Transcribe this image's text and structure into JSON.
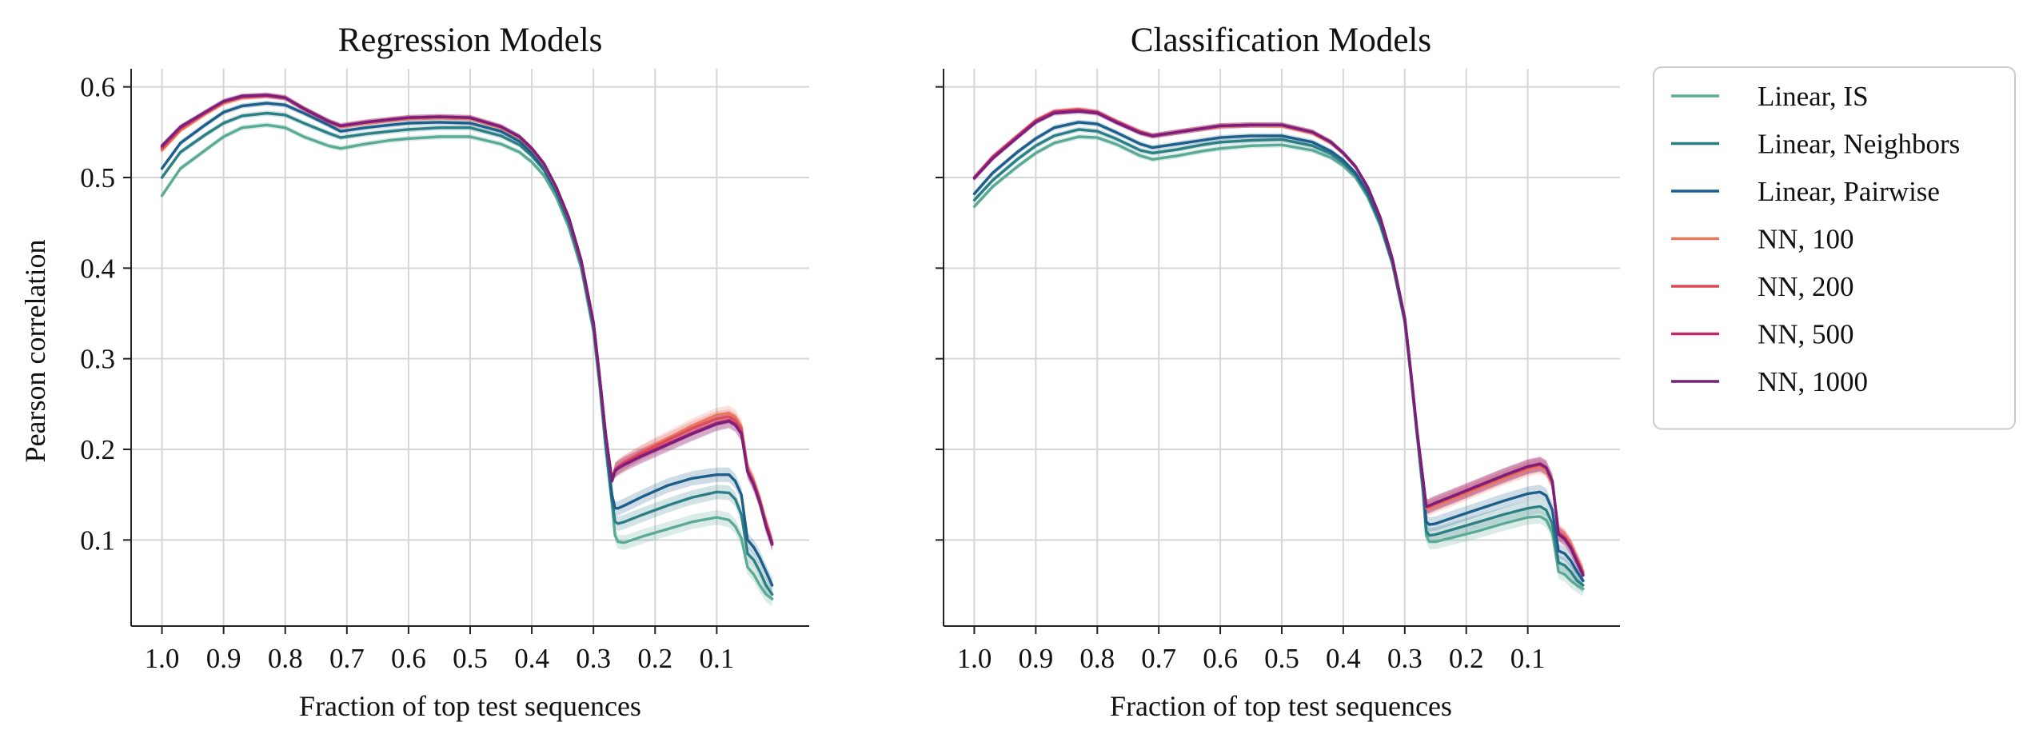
{
  "chart_data": [
    {
      "type": "line",
      "title": "Regression Models",
      "xlabel": "Fraction of top test sequences",
      "ylabel": "Pearson correlation",
      "xlim": [
        1.05,
        -0.05
      ],
      "ylim": [
        0.005,
        0.62
      ],
      "xticks": [
        1.0,
        0.9,
        0.8,
        0.7,
        0.6,
        0.5,
        0.4,
        0.3,
        0.2,
        0.1
      ],
      "xtick_labels": [
        "1.0",
        "0.9",
        "0.8",
        "0.7",
        "0.6",
        "0.5",
        "0.4",
        "0.3",
        "0.2",
        "0.1"
      ],
      "yticks": [
        0.1,
        0.2,
        0.3,
        0.4,
        0.5,
        0.6
      ],
      "ytick_labels": [
        "0.1",
        "0.2",
        "0.3",
        "0.4",
        "0.5",
        "0.6"
      ],
      "grid": true,
      "x": [
        1.0,
        0.97,
        0.93,
        0.9,
        0.87,
        0.83,
        0.8,
        0.77,
        0.73,
        0.71,
        0.67,
        0.63,
        0.6,
        0.55,
        0.5,
        0.45,
        0.42,
        0.4,
        0.38,
        0.36,
        0.34,
        0.32,
        0.3,
        0.29,
        0.28,
        0.27,
        0.265,
        0.26,
        0.25,
        0.22,
        0.18,
        0.14,
        0.1,
        0.08,
        0.07,
        0.06,
        0.05,
        0.04,
        0.03,
        0.02,
        0.01
      ],
      "series": [
        {
          "name": "Linear, IS",
          "color": "#5aaa95",
          "values": [
            0.48,
            0.51,
            0.53,
            0.545,
            0.555,
            0.558,
            0.555,
            0.545,
            0.535,
            0.532,
            0.537,
            0.541,
            0.543,
            0.545,
            0.545,
            0.537,
            0.528,
            0.517,
            0.502,
            0.478,
            0.445,
            0.4,
            0.33,
            0.27,
            0.2,
            0.14,
            0.105,
            0.098,
            0.097,
            0.104,
            0.112,
            0.12,
            0.125,
            0.122,
            0.115,
            0.102,
            0.07,
            0.062,
            0.05,
            0.04,
            0.035
          ]
        },
        {
          "name": "Linear, Neighbors",
          "color": "#2d7f86",
          "values": [
            0.5,
            0.528,
            0.547,
            0.56,
            0.568,
            0.571,
            0.569,
            0.56,
            0.549,
            0.544,
            0.548,
            0.551,
            0.553,
            0.555,
            0.555,
            0.546,
            0.536,
            0.524,
            0.508,
            0.483,
            0.45,
            0.404,
            0.335,
            0.275,
            0.205,
            0.145,
            0.12,
            0.118,
            0.12,
            0.128,
            0.138,
            0.147,
            0.153,
            0.152,
            0.145,
            0.128,
            0.085,
            0.078,
            0.065,
            0.05,
            0.04
          ]
        },
        {
          "name": "Linear, Pairwise",
          "color": "#1d5f8a",
          "values": [
            0.51,
            0.538,
            0.558,
            0.572,
            0.579,
            0.582,
            0.58,
            0.571,
            0.558,
            0.551,
            0.555,
            0.558,
            0.56,
            0.561,
            0.56,
            0.551,
            0.54,
            0.527,
            0.51,
            0.485,
            0.452,
            0.406,
            0.337,
            0.278,
            0.21,
            0.15,
            0.135,
            0.135,
            0.138,
            0.148,
            0.16,
            0.168,
            0.172,
            0.172,
            0.165,
            0.15,
            0.1,
            0.092,
            0.08,
            0.065,
            0.05
          ]
        },
        {
          "name": "NN, 100",
          "color": "#e8775c",
          "values": [
            0.53,
            0.552,
            0.57,
            0.582,
            0.588,
            0.59,
            0.588,
            0.576,
            0.562,
            0.556,
            0.56,
            0.563,
            0.565,
            0.566,
            0.565,
            0.555,
            0.544,
            0.531,
            0.514,
            0.488,
            0.455,
            0.408,
            0.34,
            0.28,
            0.215,
            0.165,
            0.177,
            0.18,
            0.185,
            0.198,
            0.212,
            0.226,
            0.238,
            0.24,
            0.236,
            0.225,
            0.18,
            0.165,
            0.145,
            0.12,
            0.098
          ]
        },
        {
          "name": "NN, 200",
          "color": "#dd4a59",
          "values": [
            0.532,
            0.554,
            0.571,
            0.583,
            0.589,
            0.59,
            0.588,
            0.576,
            0.562,
            0.557,
            0.561,
            0.564,
            0.566,
            0.567,
            0.566,
            0.556,
            0.545,
            0.532,
            0.515,
            0.489,
            0.455,
            0.408,
            0.34,
            0.28,
            0.215,
            0.166,
            0.178,
            0.181,
            0.186,
            0.197,
            0.21,
            0.223,
            0.234,
            0.236,
            0.232,
            0.222,
            0.178,
            0.163,
            0.143,
            0.118,
            0.097
          ]
        },
        {
          "name": "NN, 500",
          "color": "#c02a6b",
          "values": [
            0.534,
            0.555,
            0.572,
            0.584,
            0.589,
            0.591,
            0.588,
            0.576,
            0.562,
            0.557,
            0.561,
            0.564,
            0.566,
            0.567,
            0.566,
            0.556,
            0.545,
            0.532,
            0.515,
            0.489,
            0.456,
            0.409,
            0.34,
            0.28,
            0.216,
            0.166,
            0.177,
            0.18,
            0.184,
            0.194,
            0.206,
            0.218,
            0.229,
            0.232,
            0.228,
            0.218,
            0.176,
            0.162,
            0.142,
            0.116,
            0.096
          ]
        },
        {
          "name": "NN, 1000",
          "color": "#7b1f7d",
          "values": [
            0.535,
            0.556,
            0.572,
            0.584,
            0.59,
            0.591,
            0.588,
            0.576,
            0.562,
            0.557,
            0.561,
            0.564,
            0.566,
            0.567,
            0.566,
            0.556,
            0.545,
            0.532,
            0.515,
            0.489,
            0.456,
            0.409,
            0.34,
            0.28,
            0.216,
            0.165,
            0.176,
            0.179,
            0.183,
            0.193,
            0.205,
            0.217,
            0.228,
            0.231,
            0.227,
            0.217,
            0.175,
            0.161,
            0.141,
            0.115,
            0.095
          ]
        }
      ]
    },
    {
      "type": "line",
      "title": "Classification Models",
      "xlabel": "Fraction of top test sequences",
      "ylabel": "",
      "xlim": [
        1.05,
        -0.05
      ],
      "ylim": [
        0.005,
        0.62
      ],
      "xticks": [
        1.0,
        0.9,
        0.8,
        0.7,
        0.6,
        0.5,
        0.4,
        0.3,
        0.2,
        0.1
      ],
      "xtick_labels": [
        "1.0",
        "0.9",
        "0.8",
        "0.7",
        "0.6",
        "0.5",
        "0.4",
        "0.3",
        "0.2",
        "0.1"
      ],
      "yticks": [
        0.1,
        0.2,
        0.3,
        0.4,
        0.5,
        0.6
      ],
      "ytick_labels": [],
      "grid": true,
      "x": [
        1.0,
        0.97,
        0.93,
        0.9,
        0.87,
        0.83,
        0.8,
        0.77,
        0.73,
        0.71,
        0.67,
        0.63,
        0.6,
        0.55,
        0.5,
        0.45,
        0.42,
        0.4,
        0.38,
        0.36,
        0.34,
        0.32,
        0.3,
        0.29,
        0.28,
        0.27,
        0.265,
        0.26,
        0.25,
        0.22,
        0.18,
        0.14,
        0.1,
        0.08,
        0.07,
        0.06,
        0.05,
        0.04,
        0.03,
        0.02,
        0.01
      ],
      "series": [
        {
          "name": "Linear, IS",
          "color": "#5aaa95",
          "values": [
            0.468,
            0.49,
            0.512,
            0.527,
            0.538,
            0.545,
            0.544,
            0.537,
            0.524,
            0.52,
            0.524,
            0.529,
            0.532,
            0.535,
            0.536,
            0.53,
            0.522,
            0.513,
            0.5,
            0.478,
            0.447,
            0.404,
            0.34,
            0.28,
            0.215,
            0.15,
            0.105,
            0.098,
            0.098,
            0.103,
            0.11,
            0.118,
            0.125,
            0.126,
            0.122,
            0.108,
            0.065,
            0.062,
            0.055,
            0.05,
            0.046
          ]
        },
        {
          "name": "Linear, Neighbors",
          "color": "#2d7f86",
          "values": [
            0.475,
            0.497,
            0.52,
            0.535,
            0.546,
            0.553,
            0.551,
            0.543,
            0.53,
            0.527,
            0.531,
            0.536,
            0.539,
            0.541,
            0.542,
            0.535,
            0.526,
            0.516,
            0.503,
            0.481,
            0.449,
            0.406,
            0.342,
            0.282,
            0.217,
            0.155,
            0.11,
            0.105,
            0.106,
            0.112,
            0.12,
            0.128,
            0.135,
            0.137,
            0.133,
            0.118,
            0.075,
            0.072,
            0.065,
            0.055,
            0.05
          ]
        },
        {
          "name": "Linear, Pairwise",
          "color": "#1d5f8a",
          "values": [
            0.482,
            0.505,
            0.528,
            0.543,
            0.555,
            0.561,
            0.559,
            0.55,
            0.537,
            0.533,
            0.537,
            0.541,
            0.544,
            0.546,
            0.546,
            0.539,
            0.529,
            0.519,
            0.505,
            0.483,
            0.451,
            0.407,
            0.343,
            0.283,
            0.218,
            0.16,
            0.12,
            0.117,
            0.118,
            0.125,
            0.134,
            0.143,
            0.151,
            0.153,
            0.149,
            0.133,
            0.088,
            0.085,
            0.077,
            0.065,
            0.055
          ]
        },
        {
          "name": "NN, 100",
          "color": "#e8775c",
          "values": [
            0.5,
            0.522,
            0.545,
            0.562,
            0.572,
            0.575,
            0.572,
            0.562,
            0.55,
            0.546,
            0.55,
            0.554,
            0.556,
            0.558,
            0.557,
            0.549,
            0.538,
            0.527,
            0.512,
            0.489,
            0.456,
            0.41,
            0.345,
            0.285,
            0.22,
            0.165,
            0.135,
            0.135,
            0.138,
            0.146,
            0.157,
            0.168,
            0.178,
            0.181,
            0.177,
            0.162,
            0.11,
            0.105,
            0.095,
            0.08,
            0.065
          ]
        },
        {
          "name": "NN, 200",
          "color": "#dd4a59",
          "values": [
            0.5,
            0.523,
            0.546,
            0.563,
            0.573,
            0.575,
            0.572,
            0.562,
            0.55,
            0.546,
            0.55,
            0.554,
            0.557,
            0.558,
            0.558,
            0.55,
            0.539,
            0.527,
            0.512,
            0.489,
            0.456,
            0.41,
            0.345,
            0.285,
            0.22,
            0.165,
            0.136,
            0.137,
            0.14,
            0.148,
            0.159,
            0.17,
            0.18,
            0.183,
            0.179,
            0.164,
            0.108,
            0.103,
            0.093,
            0.078,
            0.063
          ]
        },
        {
          "name": "NN, 500",
          "color": "#c02a6b",
          "values": [
            0.5,
            0.522,
            0.545,
            0.562,
            0.572,
            0.574,
            0.572,
            0.562,
            0.55,
            0.546,
            0.55,
            0.554,
            0.557,
            0.558,
            0.558,
            0.55,
            0.539,
            0.527,
            0.512,
            0.489,
            0.456,
            0.41,
            0.345,
            0.285,
            0.22,
            0.165,
            0.137,
            0.138,
            0.141,
            0.149,
            0.16,
            0.171,
            0.181,
            0.184,
            0.18,
            0.165,
            0.107,
            0.102,
            0.092,
            0.077,
            0.062
          ]
        },
        {
          "name": "NN, 1000",
          "color": "#7b1f7d",
          "values": [
            0.499,
            0.521,
            0.544,
            0.561,
            0.571,
            0.573,
            0.571,
            0.561,
            0.549,
            0.546,
            0.55,
            0.554,
            0.557,
            0.558,
            0.558,
            0.55,
            0.539,
            0.527,
            0.512,
            0.489,
            0.456,
            0.41,
            0.345,
            0.285,
            0.22,
            0.165,
            0.137,
            0.138,
            0.141,
            0.149,
            0.16,
            0.171,
            0.181,
            0.184,
            0.18,
            0.165,
            0.106,
            0.101,
            0.091,
            0.076,
            0.061
          ]
        }
      ]
    }
  ]
}
